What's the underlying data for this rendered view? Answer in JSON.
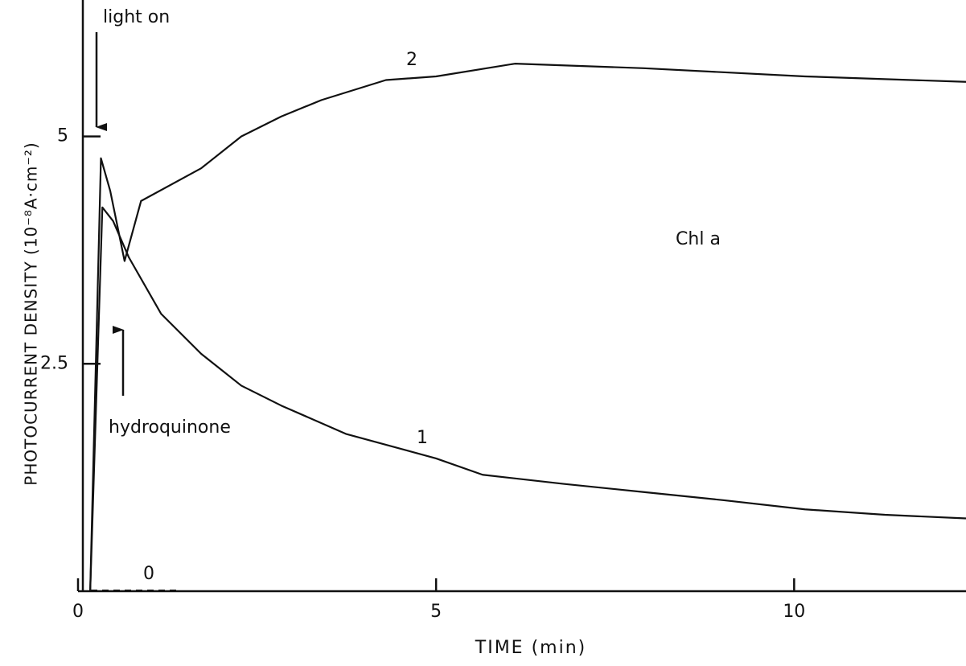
{
  "chart_data": {
    "type": "line",
    "xlabel": "TIME (min)",
    "ylabel": "PHOTOCURRENT DENSITY (10⁻⁸A·cm⁻²)",
    "xlim": [
      0,
      12.4
    ],
    "ylim": [
      0,
      6.5
    ],
    "xticks": [
      0,
      5,
      10
    ],
    "yticks": [
      2.5,
      5
    ],
    "grid": false,
    "series": [
      {
        "name": "1",
        "color": "#111111",
        "x": [
          0.17,
          0.34,
          0.49,
          0.71,
          1.16,
          1.72,
          2.28,
          2.84,
          3.74,
          5,
          5.65,
          6.78,
          7.9,
          9.02,
          10.15,
          11.27,
          12.4
        ],
        "values": [
          0,
          4.22,
          4.07,
          3.67,
          3.05,
          2.61,
          2.26,
          2.04,
          1.73,
          1.46,
          1.28,
          1.18,
          1.09,
          1.0,
          0.9,
          0.84,
          0.8
        ]
      },
      {
        "name": "2",
        "color": "#111111",
        "x": [
          0.17,
          0.32,
          0.45,
          0.65,
          0.88,
          1.72,
          2.28,
          2.84,
          3.4,
          4.3,
          5,
          6.1,
          7.9,
          10.15,
          12.4
        ],
        "values": [
          0,
          4.76,
          4.4,
          3.63,
          4.29,
          4.65,
          5.0,
          5.22,
          5.4,
          5.62,
          5.66,
          5.8,
          5.75,
          5.66,
          5.6
        ]
      }
    ],
    "annotations": [
      "light on",
      "hydroquinone",
      "Chl a",
      "0"
    ]
  }
}
